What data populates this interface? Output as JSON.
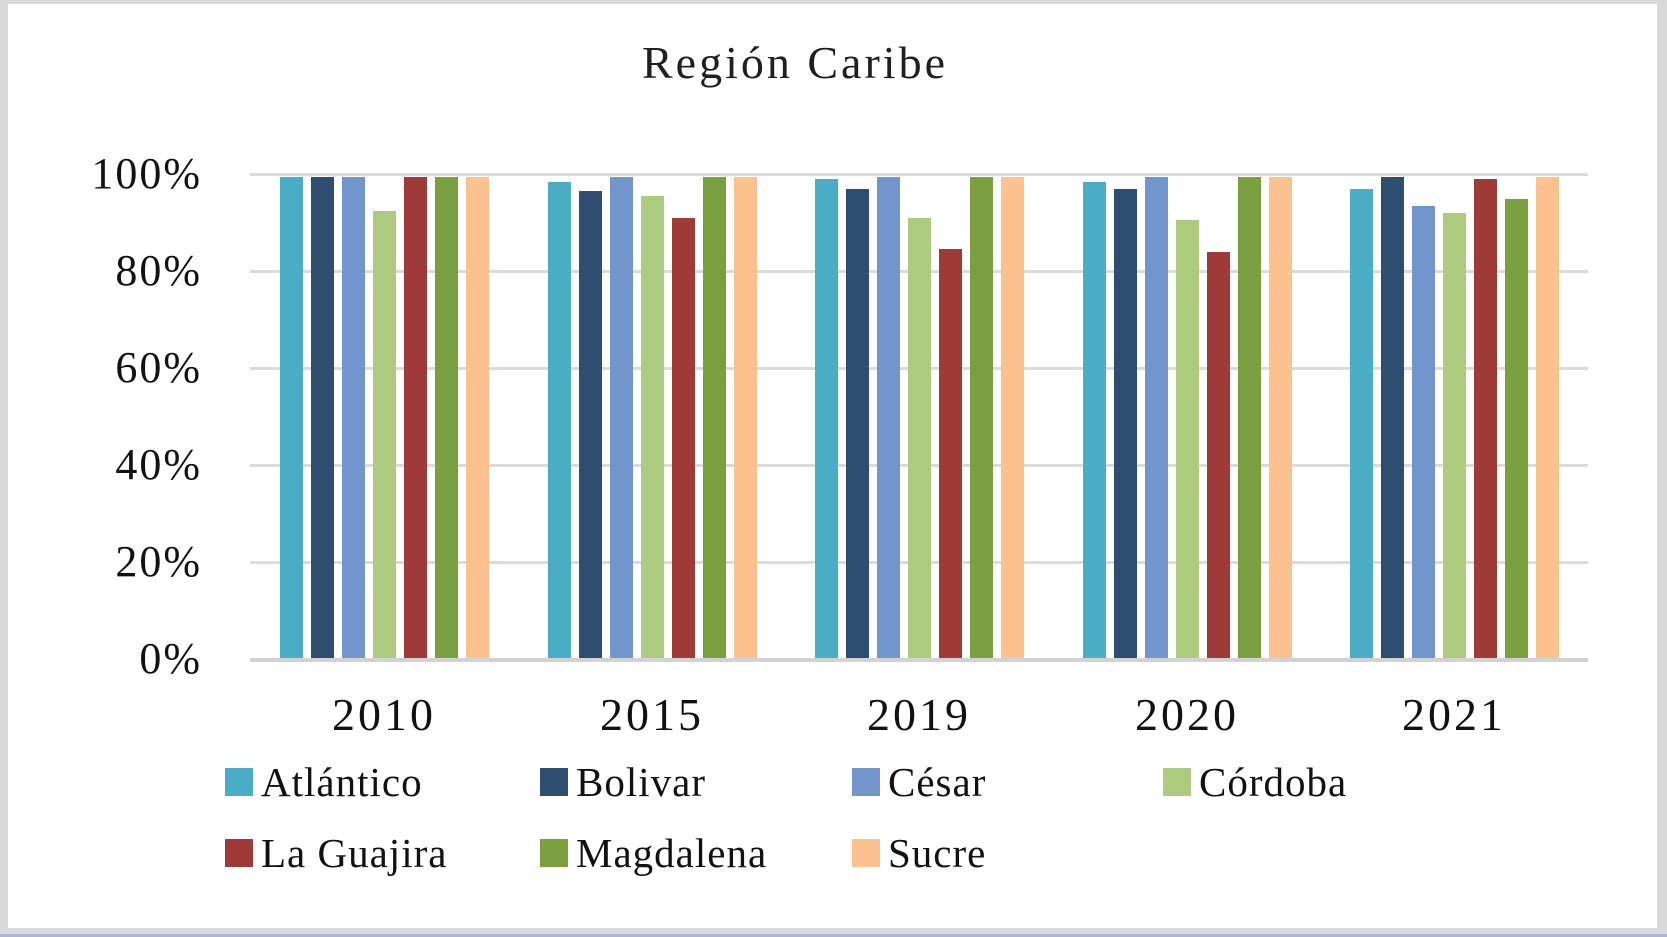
{
  "chart_data": {
    "type": "bar",
    "title": "Región Caribe",
    "xlabel": "",
    "ylabel": "",
    "categories": [
      "2010",
      "2015",
      "2019",
      "2020",
      "2021"
    ],
    "series": [
      {
        "name": "Atlántico",
        "color": "#4BACC6",
        "values": [
          100,
          99,
          99.5,
          99,
          97.5
        ]
      },
      {
        "name": "Bolivar",
        "color": "#2E4D6F",
        "values": [
          100,
          97,
          97.5,
          97.5,
          100
        ]
      },
      {
        "name": "César",
        "color": "#7296CB",
        "values": [
          100,
          100,
          100,
          100,
          94
        ]
      },
      {
        "name": "Córdoba",
        "color": "#ADCB7E",
        "values": [
          93,
          96,
          91.5,
          91,
          92.5
        ]
      },
      {
        "name": "La Guajira",
        "color": "#9E3A38",
        "values": [
          100,
          91.5,
          85,
          84.5,
          99.5
        ]
      },
      {
        "name": "Magdalena",
        "color": "#7A9F3F",
        "values": [
          100,
          100,
          100,
          100,
          95.5
        ]
      },
      {
        "name": "Sucre",
        "color": "#FBC18F",
        "values": [
          100,
          100,
          100,
          100,
          100
        ]
      }
    ],
    "ylim": [
      0,
      100
    ],
    "yticks_top_to_bottom": [
      "100%",
      "80%",
      "60%",
      "40%",
      "20%",
      "0%"
    ],
    "grid": true,
    "legend_position": "bottom"
  }
}
